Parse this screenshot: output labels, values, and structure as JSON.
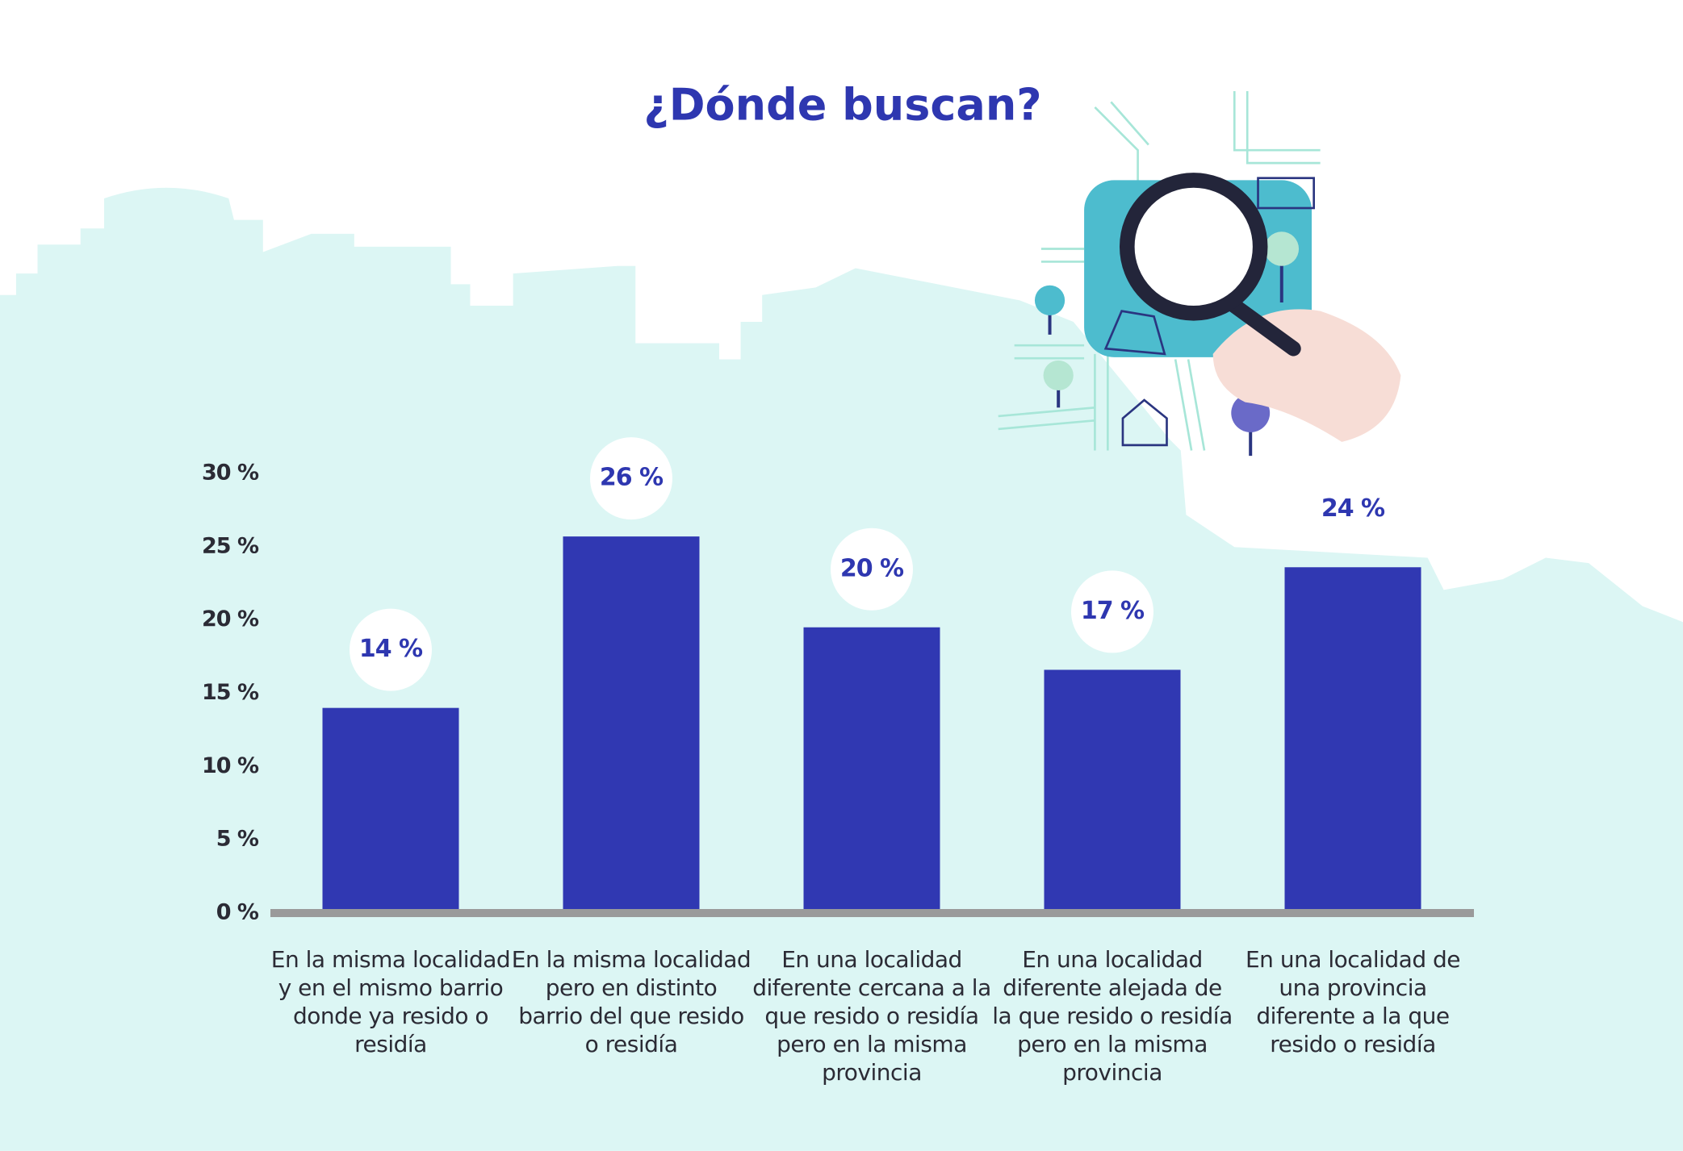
{
  "chart_data": {
    "type": "bar",
    "title": "¿Dónde buscan?",
    "categories": [
      "En la misma localidad y en el mismo barrio donde ya resido o residía",
      "En la misma localidad pero en distinto barrio del que resido o residía",
      "En una localidad diferente cercana a la que resido o residía pero en la misma provincia",
      "En una localidad diferente alejada de la que resido o residía pero en la misma provincia",
      "En una localidad de una provincia diferente a la que resido o residía"
    ],
    "values": [
      14,
      25.7,
      19.5,
      16.6,
      23.6
    ],
    "value_labels": [
      "14 %",
      "26 %",
      "20 %",
      "17 %",
      "24 %"
    ],
    "color": "#3038b2",
    "ylim": [
      0,
      30
    ],
    "yticks": [
      {
        "value": 0,
        "label": "0 %"
      },
      {
        "value": 5,
        "label": "5 %"
      },
      {
        "value": 10,
        "label": "10 %"
      },
      {
        "value": 15,
        "label": "15 %"
      },
      {
        "value": 20,
        "label": "20 %"
      },
      {
        "value": 25,
        "label": "25 %"
      },
      {
        "value": 30,
        "label": "30 %"
      }
    ],
    "grid": false
  }
}
